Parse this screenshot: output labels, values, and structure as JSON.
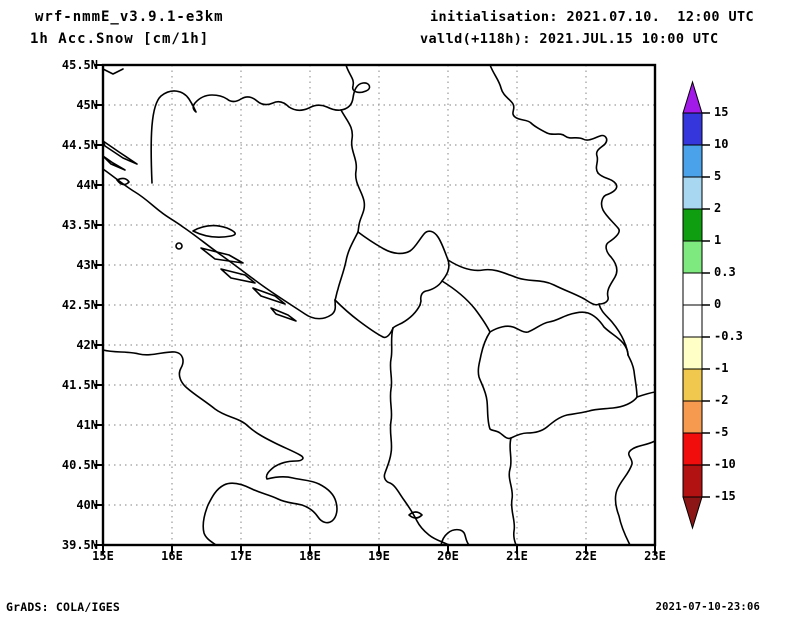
{
  "header": {
    "model": "wrf-nmmE_v3.9.1-e3km",
    "variable": "1h Acc.Snow [cm/1h]",
    "init_line": "initialisation: 2021.07.10.  12:00 UTC",
    "valid_line": "valld(+118h): 2021.JUL.15 10:00 UTC"
  },
  "footer": {
    "credit": "GrADS: COLA/IGES",
    "timestamp": "2021-07-10-23:06"
  },
  "chart_data": {
    "type": "heatmap",
    "title": "1h Acc.Snow [cm/1h]",
    "subtitle": "wrf-nmmE_v3.9.1-e3km",
    "region": "Balkans / Adriatic map, 15E-23E, 39.5N-45.5N",
    "x_axis": {
      "range": [
        15,
        23
      ],
      "ticks": [
        "15E",
        "16E",
        "17E",
        "18E",
        "19E",
        "20E",
        "21E",
        "22E",
        "23E"
      ],
      "grid": true
    },
    "y_axis": {
      "range": [
        39.5,
        45.5
      ],
      "ticks": [
        "45.5N",
        "45N",
        "44.5N",
        "44N",
        "43.5N",
        "43N",
        "42.5N",
        "42N",
        "41.5N",
        "41N",
        "40.5N",
        "40N",
        "39.5N"
      ],
      "grid": true
    },
    "colorbar": {
      "levels": [
        "15",
        "10",
        "5",
        "2",
        "1",
        "0.3",
        "0",
        "-0.3",
        "-1",
        "-2",
        "-5",
        "-10",
        "-15"
      ],
      "segment_colors_top_to_bottom": [
        "#3636dd",
        "#4aa2ea",
        "#a8d7f2",
        "#0f9e0f",
        "#7ee97e",
        "#ffffff",
        "#ffffff",
        "#ffffc6",
        "#f0c84e",
        "#f69a50",
        "#f20d0d",
        "#b21212"
      ],
      "above_max_color": "#a21ae8",
      "below_min_color": "#8c1616",
      "position": "right"
    },
    "field_values": "entire map domain is blank/white, i.e. 1h accumulated snow between 0 and 0.3 cm everywhere (no snow shown)"
  }
}
